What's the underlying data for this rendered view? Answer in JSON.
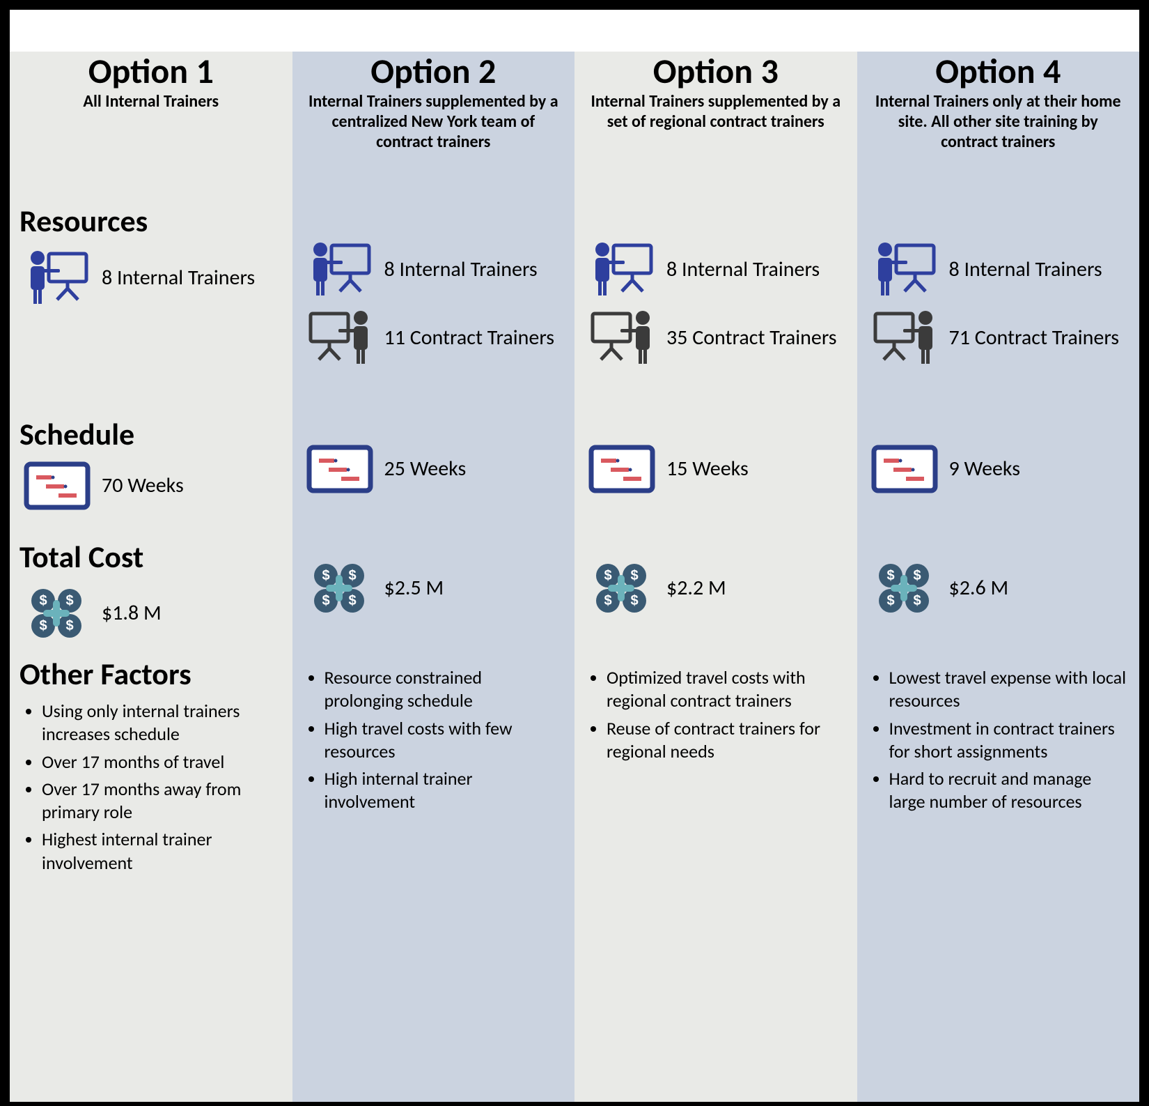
{
  "sections": {
    "resources": "Resources",
    "schedule": "Schedule",
    "totalCost": "Total Cost",
    "otherFactors": "Other Factors"
  },
  "icons": {
    "internalTrainerColor": "#2e3f9e",
    "contractTrainerColor": "#3b3b3b",
    "scheduleFrameColor": "#2b3e88",
    "scheduleBarColor": "#d9595f",
    "moneyCircleColor": "#3a5a73",
    "moneyPlusColor": "#6bb2bb"
  },
  "options": [
    {
      "title": "Option 1",
      "subtitle": "All Internal Trainers",
      "internal": "8 Internal Trainers",
      "contract": null,
      "schedule": "70 Weeks",
      "cost": "$1.8 M",
      "factors": [
        "Using only internal trainers increases schedule",
        "Over 17 months of travel",
        "Over 17 months away from primary role",
        "Highest internal trainer involvement"
      ]
    },
    {
      "title": "Option 2",
      "subtitle": "Internal Trainers supplemented by a centralized New York team of contract trainers",
      "internal": "8 Internal Trainers",
      "contract": "11 Contract Trainers",
      "schedule": "25 Weeks",
      "cost": "$2.5 M",
      "factors": [
        "Resource constrained prolonging schedule",
        "High travel costs with few resources",
        "High internal trainer involvement"
      ]
    },
    {
      "title": "Option 3",
      "subtitle": "Internal Trainers supplemented by a set of regional contract trainers",
      "internal": "8 Internal Trainers",
      "contract": "35 Contract Trainers",
      "schedule": "15 Weeks",
      "cost": "$2.2 M",
      "factors": [
        "Optimized travel costs with regional contract trainers",
        "Reuse of contract trainers for regional needs"
      ]
    },
    {
      "title": "Option 4",
      "subtitle": "Internal Trainers only at their home site.  All other site training by contract trainers",
      "internal": "8 Internal Trainers",
      "contract": "71 Contract Trainers",
      "schedule": "9 Weeks",
      "cost": "$2.6 M",
      "factors": [
        "Lowest travel expense with local resources",
        "Investment in contract trainers for short assignments",
        "Hard to recruit and manage large number of resources"
      ]
    }
  ]
}
